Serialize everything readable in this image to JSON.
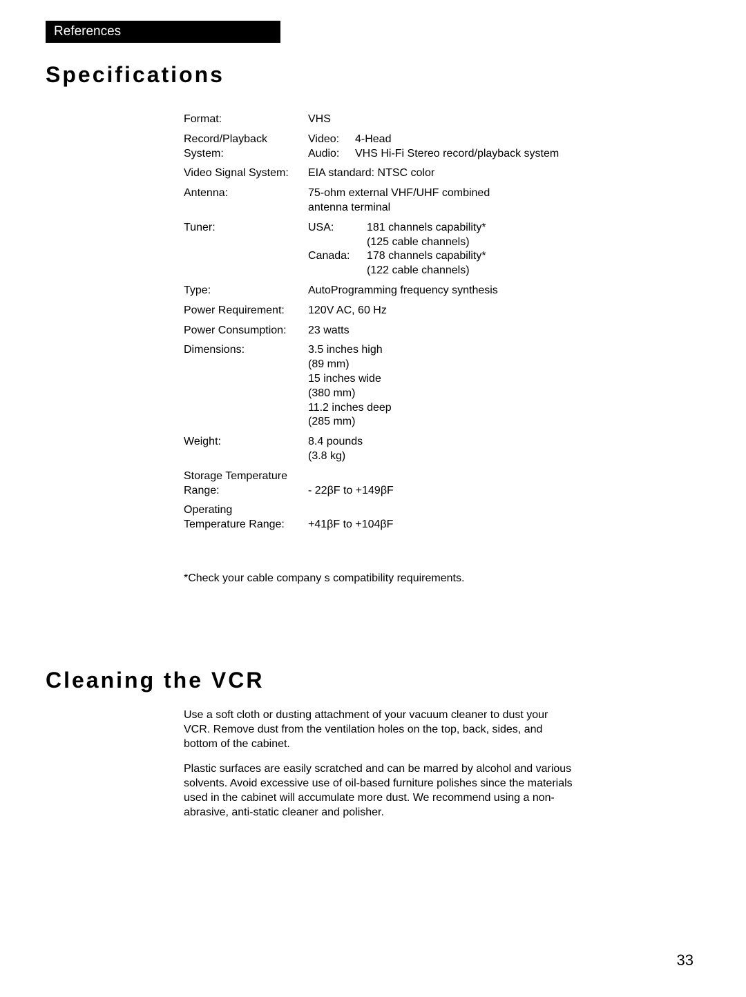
{
  "header": {
    "references_label": "References"
  },
  "specs": {
    "title": "Specifications",
    "footnote": "*Check your cable company s compatibility requirements.",
    "rows": {
      "format": {
        "label": "Format:",
        "value": "VHS"
      },
      "record_playback": {
        "label_l1": "Record/Playback",
        "label_l2": "System:",
        "video_label": "Video:",
        "video_value": "4-Head",
        "audio_label": "Audio:",
        "audio_value": "VHS Hi-Fi Stereo record/playback system"
      },
      "video_signal": {
        "label": "Video Signal System:",
        "value": "EIA standard:  NTSC color"
      },
      "antenna": {
        "label": "Antenna:",
        "value_l1": "75-ohm external VHF/UHF combined",
        "value_l2": "antenna terminal"
      },
      "tuner": {
        "label": "Tuner:",
        "usa_label": "USA:",
        "usa_l1": "181 channels capability*",
        "usa_l2": "(125 cable channels)",
        "canada_label": "Canada:",
        "canada_l1": "178 channels capability*",
        "canada_l2": "(122 cable channels)"
      },
      "type": {
        "label": "Type:",
        "value": "AutoProgramming frequency synthesis"
      },
      "power_req": {
        "label": "Power Requirement:",
        "value": "120V AC, 60 Hz"
      },
      "power_cons": {
        "label": "Power Consumption:",
        "value": "23 watts"
      },
      "dimensions": {
        "label": "Dimensions:",
        "l1": "3.5 inches high",
        "l2": "(89 mm)",
        "l3": "15 inches wide",
        "l4": "(380 mm)",
        "l5": "11.2 inches deep",
        "l6": "(285 mm)"
      },
      "weight": {
        "label": "Weight:",
        "l1": "8.4 pounds",
        "l2": "(3.8 kg)"
      },
      "storage_temp": {
        "label_l1": "Storage Temperature",
        "label_l2": "Range:",
        "value": "- 22βF to +149βF"
      },
      "op_temp": {
        "label_l1": "Operating",
        "label_l2": "Temperature Range:",
        "value": "+41βF to +104βF"
      }
    }
  },
  "cleaning": {
    "title": "Cleaning the VCR",
    "para1": "Use a soft cloth or dusting attachment of your vacuum cleaner to dust your VCR.  Remove dust from the ventilation holes on the top, back, sides, and bottom of the cabinet.",
    "para2": "Plastic surfaces are easily scratched and can be marred by alcohol and various solvents.  Avoid excessive use of oil-based furniture polishes since the materials used in the cabinet will accumulate more dust.  We recommend using a non-abrasive, anti-static cleaner and polisher."
  },
  "page_number": "33"
}
